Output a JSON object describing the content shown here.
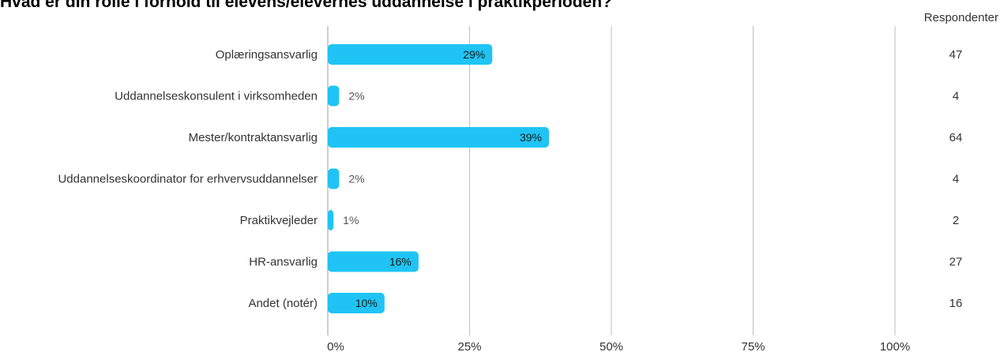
{
  "title": "Hvad er din rolle i forhold til elevens/elevernes uddannelse i praktikperioden?",
  "respondents_header": "Respondenter",
  "colors": {
    "bar": "#1fc4f4",
    "grid": "#bdbdbd",
    "text": "#333333"
  },
  "chart_data": {
    "type": "bar",
    "orientation": "horizontal",
    "title": "Hvad er din rolle i forhold til elevens/elevernes uddannelse i praktikperioden?",
    "categories": [
      "Oplæringsansvarlig",
      "Uddannelseskonsulent i virksomheden",
      "Mester/kontraktansvarlig",
      "Uddannelseskoordinator for erhvervsuddannelser",
      "Praktikvejleder",
      "HR-ansvarlig",
      "Andet (notér)"
    ],
    "values": [
      29,
      2,
      39,
      2,
      1,
      16,
      10
    ],
    "value_labels": [
      "29%",
      "2%",
      "39%",
      "2%",
      "1%",
      "16%",
      "10%"
    ],
    "respondents": [
      47,
      4,
      64,
      4,
      2,
      27,
      16
    ],
    "x_ticks": [
      0,
      25,
      50,
      75,
      100
    ],
    "x_tick_labels": [
      "0%",
      "25%",
      "50%",
      "75%",
      "100%"
    ],
    "xlim": [
      0,
      100
    ],
    "grid": true
  }
}
